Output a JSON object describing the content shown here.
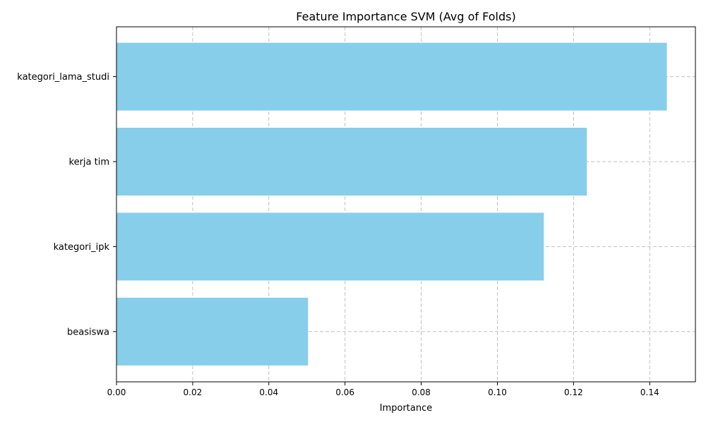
{
  "chart_data": {
    "type": "bar",
    "orientation": "horizontal",
    "title": "Feature Importance SVM (Avg of Folds)",
    "xlabel": "Importance",
    "ylabel": "",
    "categories": [
      "kategori_lama_studi",
      "kerja tim",
      "kategori_ipk",
      "beasiswa"
    ],
    "values": [
      0.1445,
      0.1235,
      0.1122,
      0.0503
    ],
    "xlim": [
      0,
      0.152
    ],
    "xticks": [
      0.0,
      0.02,
      0.04,
      0.06,
      0.08,
      0.1,
      0.12,
      0.14
    ],
    "xtick_labels": [
      "0.00",
      "0.02",
      "0.04",
      "0.06",
      "0.08",
      "0.10",
      "0.12",
      "0.14"
    ],
    "grid": true,
    "grid_style": "dashed",
    "bar_color": "#87CEEB",
    "grid_color": "#c0c0c0"
  }
}
